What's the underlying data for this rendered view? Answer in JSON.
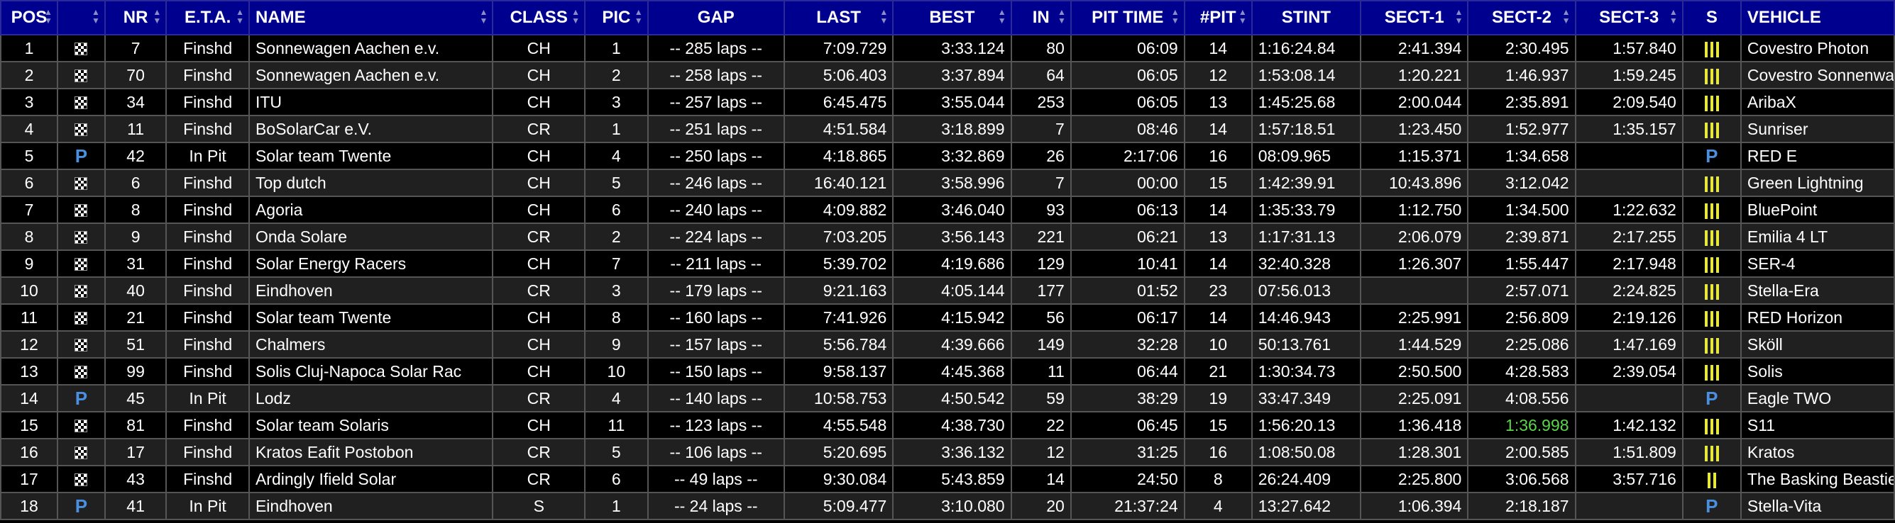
{
  "headers": {
    "pos": "POS",
    "flag": "",
    "nr": "NR",
    "eta": "E.T.A.",
    "name": "NAME",
    "class": "CLASS",
    "pic": "PIC",
    "gap": "GAP",
    "last": "LAST",
    "best": "BEST",
    "in": "IN",
    "pit_time": "PIT TIME",
    "pits": "#PIT",
    "stint": "STINT",
    "sect1": "SECT-1",
    "sect2": "SECT-2",
    "sect3": "SECT-3",
    "s": "S",
    "vehicle": "VEHICLE"
  },
  "icons": {
    "finished": "checkered-flag-icon",
    "pit": "pit-icon",
    "bars": "sector-bars-icon"
  },
  "colors": {
    "header_bg": "#00008f",
    "pit": "#4a90e2",
    "bars": "#e8e83a",
    "best_sector": "#5bd64b"
  },
  "rows": [
    {
      "pos": "1",
      "flag": "finished",
      "nr": "7",
      "eta": "Finshd",
      "name": "Sonnewagen Aachen e.v.",
      "class": "CH",
      "pic": "1",
      "gap": "-- 285 laps --",
      "last": "7:09.729",
      "best": "3:33.124",
      "in": "80",
      "pit_time": "06:09",
      "pits": "14",
      "stint": "1:16:24.84",
      "sect1": "2:41.394",
      "sect2": "2:30.495",
      "sect3": "1:57.840",
      "s": "bars3",
      "vehicle": "Covestro Photon"
    },
    {
      "pos": "2",
      "flag": "finished",
      "nr": "70",
      "eta": "Finshd",
      "name": "Sonnewagen Aachen e.v.",
      "class": "CH",
      "pic": "2",
      "gap": "-- 258 laps --",
      "last": "5:06.403",
      "best": "3:37.894",
      "in": "64",
      "pit_time": "06:05",
      "pits": "12",
      "stint": "1:53:08.14",
      "sect1": "1:20.221",
      "sect2": "1:46.937",
      "sect3": "1:59.245",
      "s": "bars3",
      "vehicle": "Covestro Sonnenwagen"
    },
    {
      "pos": "3",
      "flag": "finished",
      "nr": "34",
      "eta": "Finshd",
      "name": "ITU",
      "class": "CH",
      "pic": "3",
      "gap": "-- 257 laps --",
      "last": "6:45.475",
      "best": "3:55.044",
      "in": "253",
      "pit_time": "06:05",
      "pits": "13",
      "stint": "1:45:25.68",
      "sect1": "2:00.044",
      "sect2": "2:35.891",
      "sect3": "2:09.540",
      "s": "bars3",
      "vehicle": "AribaX"
    },
    {
      "pos": "4",
      "flag": "finished",
      "nr": "11",
      "eta": "Finshd",
      "name": "BoSolarCar e.V.",
      "class": "CR",
      "pic": "1",
      "gap": "-- 251 laps --",
      "last": "4:51.584",
      "best": "3:18.899",
      "in": "7",
      "pit_time": "08:46",
      "pits": "14",
      "stint": "1:57:18.51",
      "sect1": "1:23.450",
      "sect2": "1:52.977",
      "sect3": "1:35.157",
      "s": "bars3",
      "vehicle": "Sunriser"
    },
    {
      "pos": "5",
      "flag": "pit",
      "nr": "42",
      "eta": "In Pit",
      "name": "Solar team Twente",
      "class": "CH",
      "pic": "4",
      "gap": "-- 250 laps --",
      "last": "4:18.865",
      "best": "3:32.869",
      "in": "26",
      "pit_time": "2:17:06",
      "pits": "16",
      "stint": "08:09.965",
      "sect1": "1:15.371",
      "sect2": "1:34.658",
      "sect3": "",
      "s": "pit",
      "vehicle": "RED E"
    },
    {
      "pos": "6",
      "flag": "finished",
      "nr": "6",
      "eta": "Finshd",
      "name": "Top dutch",
      "class": "CH",
      "pic": "5",
      "gap": "-- 246 laps --",
      "last": "16:40.121",
      "best": "3:58.996",
      "in": "7",
      "pit_time": "00:00",
      "pits": "15",
      "stint": "1:42:39.91",
      "sect1": "10:43.896",
      "sect2": "3:12.042",
      "sect3": "",
      "s": "bars3",
      "vehicle": "Green Lightning"
    },
    {
      "pos": "7",
      "flag": "finished",
      "nr": "8",
      "eta": "Finshd",
      "name": "Agoria",
      "class": "CH",
      "pic": "6",
      "gap": "-- 240 laps --",
      "last": "4:09.882",
      "best": "3:46.040",
      "in": "93",
      "pit_time": "06:13",
      "pits": "14",
      "stint": "1:35:33.79",
      "sect1": "1:12.750",
      "sect2": "1:34.500",
      "sect3": "1:22.632",
      "s": "bars3",
      "vehicle": "BluePoint"
    },
    {
      "pos": "8",
      "flag": "finished",
      "nr": "9",
      "eta": "Finshd",
      "name": "Onda Solare",
      "class": "CR",
      "pic": "2",
      "gap": "-- 224 laps --",
      "last": "7:03.205",
      "best": "3:56.143",
      "in": "221",
      "pit_time": "06:21",
      "pits": "13",
      "stint": "1:17:31.13",
      "sect1": "2:06.079",
      "sect2": "2:39.871",
      "sect3": "2:17.255",
      "s": "bars3",
      "vehicle": "Emilia 4 LT"
    },
    {
      "pos": "9",
      "flag": "finished",
      "nr": "31",
      "eta": "Finshd",
      "name": "Solar Energy Racers",
      "class": "CH",
      "pic": "7",
      "gap": "-- 211 laps --",
      "last": "5:39.702",
      "best": "4:19.686",
      "in": "129",
      "pit_time": "10:41",
      "pits": "14",
      "stint": "32:40.328",
      "sect1": "1:26.307",
      "sect2": "1:55.447",
      "sect3": "2:17.948",
      "s": "bars3",
      "vehicle": "SER-4"
    },
    {
      "pos": "10",
      "flag": "finished",
      "nr": "40",
      "eta": "Finshd",
      "name": "Eindhoven",
      "class": "CR",
      "pic": "3",
      "gap": "-- 179 laps --",
      "last": "9:21.163",
      "best": "4:05.144",
      "in": "177",
      "pit_time": "01:52",
      "pits": "23",
      "stint": "07:56.013",
      "sect1": "",
      "sect2": "2:57.071",
      "sect3": "2:24.825",
      "s": "bars3",
      "vehicle": "Stella-Era"
    },
    {
      "pos": "11",
      "flag": "finished",
      "nr": "21",
      "eta": "Finshd",
      "name": "Solar team Twente",
      "class": "CH",
      "pic": "8",
      "gap": "-- 160 laps --",
      "last": "7:41.926",
      "best": "4:15.942",
      "in": "56",
      "pit_time": "06:17",
      "pits": "14",
      "stint": "14:46.943",
      "sect1": "2:25.991",
      "sect2": "2:56.809",
      "sect3": "2:19.126",
      "s": "bars3",
      "vehicle": "RED Horizon"
    },
    {
      "pos": "12",
      "flag": "finished",
      "nr": "51",
      "eta": "Finshd",
      "name": "Chalmers",
      "class": "CH",
      "pic": "9",
      "gap": "-- 157 laps --",
      "last": "5:56.784",
      "best": "4:39.666",
      "in": "149",
      "pit_time": "32:28",
      "pits": "10",
      "stint": "50:13.761",
      "sect1": "1:44.529",
      "sect2": "2:25.086",
      "sect3": "1:47.169",
      "s": "bars3",
      "vehicle": "Sköll"
    },
    {
      "pos": "13",
      "flag": "finished",
      "nr": "99",
      "eta": "Finshd",
      "name": "Solis Cluj-Napoca Solar Rac",
      "class": "CH",
      "pic": "10",
      "gap": "-- 150 laps --",
      "last": "9:58.137",
      "best": "4:45.368",
      "in": "11",
      "pit_time": "06:44",
      "pits": "21",
      "stint": "1:30:34.73",
      "sect1": "2:50.500",
      "sect2": "4:28.583",
      "sect3": "2:39.054",
      "s": "bars3",
      "vehicle": "Solis"
    },
    {
      "pos": "14",
      "flag": "pit",
      "nr": "45",
      "eta": "In Pit",
      "name": "Lodz",
      "class": "CR",
      "pic": "4",
      "gap": "-- 140 laps --",
      "last": "10:58.753",
      "best": "4:50.542",
      "in": "59",
      "pit_time": "38:29",
      "pits": "19",
      "stint": "33:47.349",
      "sect1": "2:25.091",
      "sect2": "4:08.556",
      "sect3": "",
      "s": "pit",
      "vehicle": "Eagle TWO"
    },
    {
      "pos": "15",
      "flag": "finished",
      "nr": "81",
      "eta": "Finshd",
      "name": "Solar team Solaris",
      "class": "CH",
      "pic": "11",
      "gap": "-- 123 laps --",
      "last": "4:55.548",
      "best": "4:38.730",
      "in": "22",
      "pit_time": "06:45",
      "pits": "15",
      "stint": "1:56:20.13",
      "sect1": "1:36.418",
      "sect2": "1:36.998",
      "sect2_best": true,
      "sect3": "1:42.132",
      "s": "bars3",
      "vehicle": "S11"
    },
    {
      "pos": "16",
      "flag": "finished",
      "nr": "17",
      "eta": "Finshd",
      "name": "Kratos Eafit Postobon",
      "class": "CR",
      "pic": "5",
      "gap": "-- 106 laps --",
      "last": "5:20.695",
      "best": "3:36.132",
      "in": "12",
      "pit_time": "31:25",
      "pits": "16",
      "stint": "1:08:50.08",
      "sect1": "1:28.301",
      "sect2": "2:00.585",
      "sect3": "1:51.809",
      "s": "bars3",
      "vehicle": "Kratos"
    },
    {
      "pos": "17",
      "flag": "finished",
      "nr": "43",
      "eta": "Finshd",
      "name": "Ardingly Ifield Solar",
      "class": "CR",
      "pic": "6",
      "gap": "-- 49 laps --",
      "last": "9:30.084",
      "best": "5:43.859",
      "in": "14",
      "pit_time": "24:50",
      "pits": "8",
      "stint": "26:24.409",
      "sect1": "2:25.800",
      "sect2": "3:06.568",
      "sect3": "3:57.716",
      "s": "bars2",
      "vehicle": "The Basking Beastie"
    },
    {
      "pos": "18",
      "flag": "pit",
      "nr": "41",
      "eta": "In Pit",
      "name": "Eindhoven",
      "class": "S",
      "pic": "1",
      "gap": "-- 24 laps --",
      "last": "5:09.477",
      "best": "3:10.080",
      "in": "20",
      "pit_time": "21:37:24",
      "pits": "4",
      "stint": "13:27.642",
      "sect1": "1:06.394",
      "sect2": "2:18.187",
      "sect3": "",
      "s": "pit",
      "vehicle": "Stella-Vita"
    }
  ]
}
